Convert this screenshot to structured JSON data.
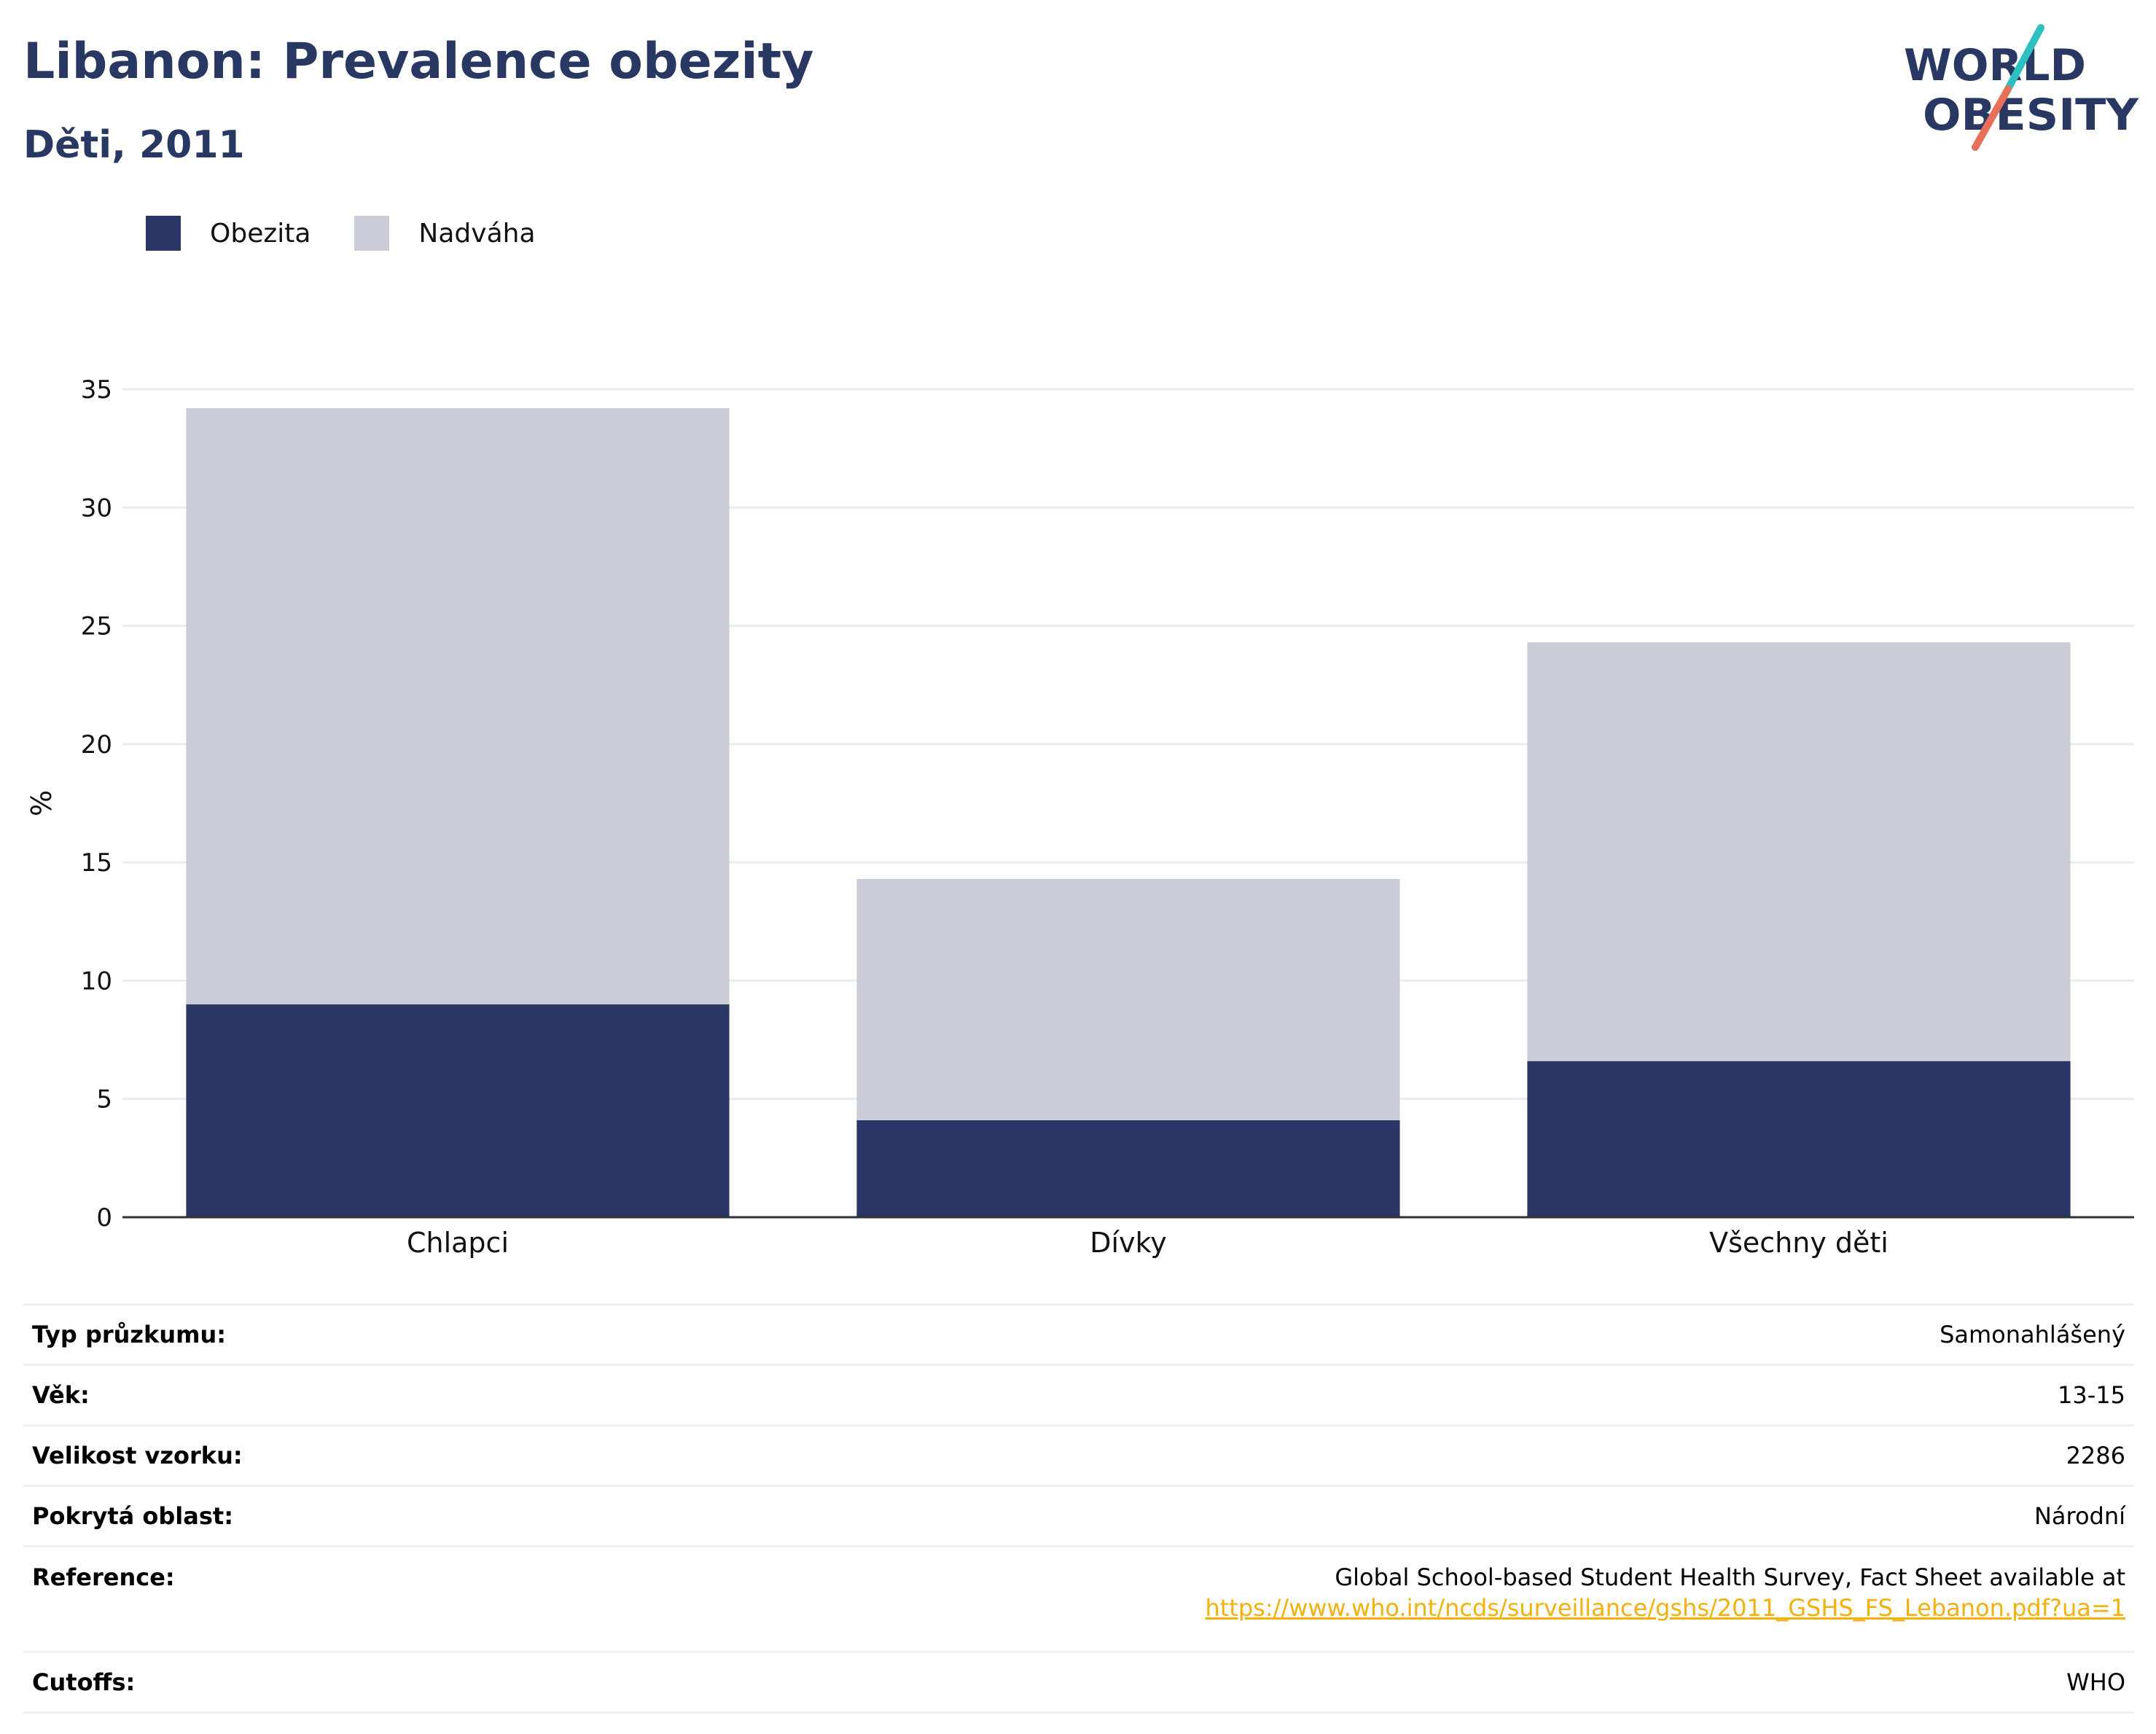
{
  "header": {
    "title": "Libanon: Prevalence obezity",
    "subtitle": "Děti, 2011",
    "logo": {
      "line1": "WORLD",
      "line2": "OBESITY",
      "colors": {
        "text": "#283862",
        "slash_top": "#2cc0c0",
        "slash_bottom": "#e8705a"
      }
    }
  },
  "legend": [
    {
      "label": "Obezita",
      "color": "#2a3764"
    },
    {
      "label": "Nadváha",
      "color": "#cacdd7"
    }
  ],
  "chart_data": {
    "type": "bar",
    "stacked": true,
    "categories": [
      "Chlapci",
      "Dívky",
      "Všechny děti"
    ],
    "series": [
      {
        "name": "Obezita",
        "values": [
          9.0,
          4.1,
          6.6
        ],
        "color": "#2a3764"
      },
      {
        "name": "Nadváha",
        "values": [
          25.2,
          10.2,
          17.7
        ],
        "color": "#cacdd7"
      }
    ],
    "ylabel": "%",
    "ylim": [
      0,
      35
    ],
    "yticks": [
      0,
      5,
      10,
      15,
      20,
      25,
      30,
      35
    ],
    "grid": true,
    "legend_position": "top-left"
  },
  "info": [
    {
      "key": "Typ průzkumu:",
      "value": "Samonahlášený"
    },
    {
      "key": "Věk:",
      "value": "13-15"
    },
    {
      "key": "Velikost vzorku:",
      "value": "2286"
    },
    {
      "key": "Pokrytá oblast:",
      "value": "Národní"
    },
    {
      "key": "Reference:",
      "value": "Global School-based Student Health Survey, Fact Sheet available at",
      "link": "https://www.who.int/ncds/surveillance/gshs/2011_GSHS_FS_Lebanon.pdf?ua=1"
    },
    {
      "key": "Cutoffs:",
      "value": "WHO"
    }
  ]
}
